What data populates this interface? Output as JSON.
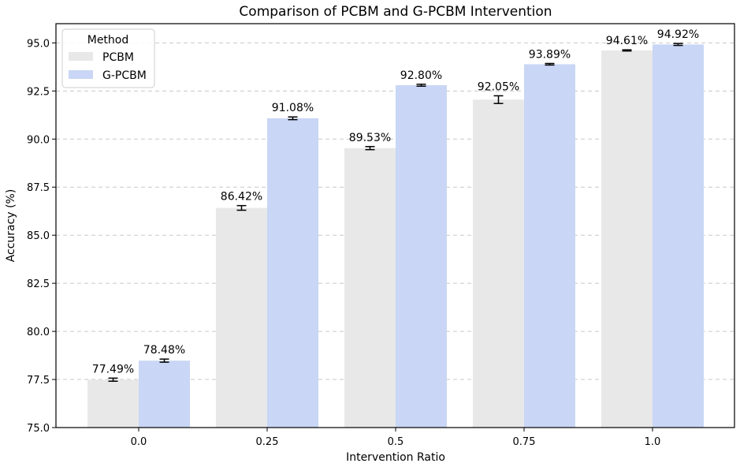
{
  "chart_data": {
    "type": "bar",
    "title": "Comparison of PCBM and G-PCBM Intervention",
    "xlabel": "Intervention Ratio",
    "ylabel": "Accuracy (%)",
    "categories": [
      "0.0",
      "0.25",
      "0.5",
      "0.75",
      "1.0"
    ],
    "ylim": [
      75.0,
      96.0
    ],
    "yticks": [
      "75.0",
      "77.5",
      "80.0",
      "82.5",
      "85.0",
      "87.5",
      "90.0",
      "92.5",
      "95.0"
    ],
    "grid": "horizontal dashed",
    "legend": {
      "title": "Method",
      "placement": "top-left"
    },
    "series": [
      {
        "name": "PCBM",
        "color": "#e8e8e8",
        "values": [
          77.49,
          86.42,
          89.53,
          92.05,
          94.61
        ],
        "errors": [
          0.08,
          0.12,
          0.08,
          0.2,
          0.03
        ],
        "labels": [
          "77.49%",
          "86.42%",
          "89.53%",
          "92.05%",
          "94.61%"
        ]
      },
      {
        "name": "G-PCBM",
        "color": "#c9d6f5",
        "values": [
          78.48,
          91.08,
          92.8,
          93.89,
          94.92
        ],
        "errors": [
          0.08,
          0.07,
          0.05,
          0.04,
          0.05
        ],
        "labels": [
          "78.48%",
          "91.08%",
          "92.80%",
          "93.89%",
          "94.92%"
        ]
      }
    ]
  }
}
